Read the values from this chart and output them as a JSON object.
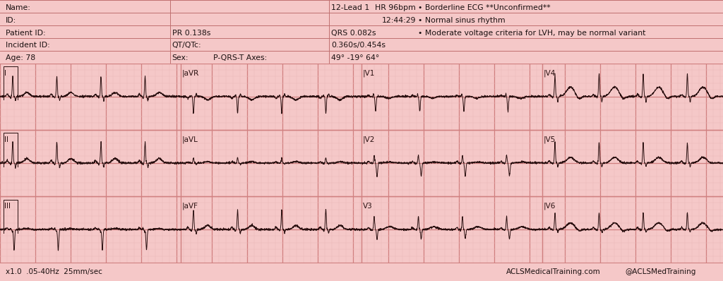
{
  "bg_color": "#f5c8c8",
  "grid_minor_color": "#ebb8b8",
  "grid_major_color": "#d08080",
  "line_color": "#2a1010",
  "text_color": "#1a1010",
  "header_bg": "#f5c8c8",
  "footer_bg": "#edaaaa",
  "fig_width": 10.24,
  "fig_height": 3.98,
  "header_lines_color": "#c07070",
  "header": {
    "name_label": "Name:",
    "id_label": "ID:",
    "patient_id_label": "Patient ID:",
    "incident_id_label": "Incident ID:",
    "age_label": "Age: 78",
    "sex_label": "Sex:",
    "lead_label": "12-Lead 1",
    "hr_label": "HR 96bpm",
    "time_label": "12:44:29",
    "pr_label": "PR 0.138s",
    "qrs_label": "QRS 0.082s",
    "qtqtc_label": "QT/QTc:",
    "qtqtc_val": "0.360s/0.454s",
    "axes_label": "P-QRS-T Axes:",
    "axes_val": "49° -19° 64°",
    "interp1": "• Borderline ECG **Unconfirmed**",
    "interp2": "• Normal sinus rhythm",
    "interp3": "• Moderate voltage criteria for LVH, may be normal variant"
  },
  "footer_left": "x1.0  .05-40Hz  25mm/sec",
  "footer_right1": "ACLSMedicalTraining.com",
  "footer_right2": "@ACLSMedTraining"
}
